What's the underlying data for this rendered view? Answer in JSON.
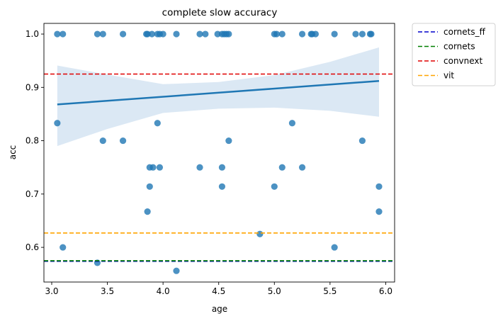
{
  "chart_data": {
    "type": "scatter",
    "title": "complete slow accuracy",
    "xlabel": "age",
    "ylabel": "acc",
    "xlim": [
      2.93,
      6.08
    ],
    "ylim": [
      0.535,
      1.02
    ],
    "xticks": [
      3.0,
      3.5,
      4.0,
      4.5,
      5.0,
      5.5,
      6.0
    ],
    "xtick_labels": [
      "3.0",
      "3.5",
      "4.0",
      "4.5",
      "5.0",
      "5.5",
      "6.0"
    ],
    "yticks": [
      0.6,
      0.7,
      0.8,
      0.9,
      1.0
    ],
    "ytick_labels": [
      "0.6",
      "0.7",
      "0.8",
      "0.9",
      "1.0"
    ],
    "grid": false,
    "legend_position": "outside-top-right",
    "point_color": "#1f77b4",
    "points": [
      {
        "x": 3.05,
        "y": 1.0
      },
      {
        "x": 3.1,
        "y": 1.0
      },
      {
        "x": 3.41,
        "y": 1.0
      },
      {
        "x": 3.46,
        "y": 1.0
      },
      {
        "x": 3.64,
        "y": 1.0
      },
      {
        "x": 3.85,
        "y": 1.0
      },
      {
        "x": 3.86,
        "y": 1.0
      },
      {
        "x": 3.9,
        "y": 1.0
      },
      {
        "x": 3.95,
        "y": 1.0
      },
      {
        "x": 3.97,
        "y": 1.0
      },
      {
        "x": 4.0,
        "y": 1.0
      },
      {
        "x": 4.12,
        "y": 1.0
      },
      {
        "x": 4.33,
        "y": 1.0
      },
      {
        "x": 4.38,
        "y": 1.0
      },
      {
        "x": 4.49,
        "y": 1.0
      },
      {
        "x": 4.53,
        "y": 1.0
      },
      {
        "x": 4.55,
        "y": 1.0
      },
      {
        "x": 4.57,
        "y": 1.0
      },
      {
        "x": 4.59,
        "y": 1.0
      },
      {
        "x": 5.0,
        "y": 1.0
      },
      {
        "x": 5.02,
        "y": 1.0
      },
      {
        "x": 5.07,
        "y": 1.0
      },
      {
        "x": 5.25,
        "y": 1.0
      },
      {
        "x": 5.33,
        "y": 1.0
      },
      {
        "x": 5.34,
        "y": 1.0
      },
      {
        "x": 5.37,
        "y": 1.0
      },
      {
        "x": 5.54,
        "y": 1.0
      },
      {
        "x": 5.73,
        "y": 1.0
      },
      {
        "x": 5.79,
        "y": 1.0
      },
      {
        "x": 5.86,
        "y": 1.0
      },
      {
        "x": 5.87,
        "y": 1.0
      },
      {
        "x": 3.05,
        "y": 0.833
      },
      {
        "x": 3.95,
        "y": 0.833
      },
      {
        "x": 5.16,
        "y": 0.833
      },
      {
        "x": 3.46,
        "y": 0.8
      },
      {
        "x": 3.64,
        "y": 0.8
      },
      {
        "x": 4.59,
        "y": 0.8
      },
      {
        "x": 5.79,
        "y": 0.8
      },
      {
        "x": 3.88,
        "y": 0.75
      },
      {
        "x": 3.91,
        "y": 0.75
      },
      {
        "x": 3.97,
        "y": 0.75
      },
      {
        "x": 4.33,
        "y": 0.75
      },
      {
        "x": 4.53,
        "y": 0.75
      },
      {
        "x": 5.07,
        "y": 0.75
      },
      {
        "x": 5.25,
        "y": 0.75
      },
      {
        "x": 3.88,
        "y": 0.714
      },
      {
        "x": 4.53,
        "y": 0.714
      },
      {
        "x": 5.0,
        "y": 0.714
      },
      {
        "x": 5.94,
        "y": 0.714
      },
      {
        "x": 3.86,
        "y": 0.667
      },
      {
        "x": 5.94,
        "y": 0.667
      },
      {
        "x": 4.87,
        "y": 0.625
      },
      {
        "x": 3.1,
        "y": 0.6
      },
      {
        "x": 5.54,
        "y": 0.6
      },
      {
        "x": 3.41,
        "y": 0.571
      },
      {
        "x": 4.12,
        "y": 0.556
      }
    ],
    "regression": {
      "x": [
        3.05,
        5.94
      ],
      "y": [
        0.868,
        0.912
      ],
      "color": "#1f77b4",
      "ci_band": {
        "x": [
          3.05,
          3.5,
          4.0,
          4.5,
          5.0,
          5.5,
          5.94
        ],
        "upper": [
          0.941,
          0.924,
          0.906,
          0.91,
          0.923,
          0.948,
          0.975
        ],
        "lower": [
          0.79,
          0.822,
          0.852,
          0.86,
          0.862,
          0.856,
          0.845
        ],
        "color": "#cfe0f0"
      }
    },
    "reference_lines": [
      {
        "name": "cornets_ff",
        "y": 0.574,
        "color": "#0000cc"
      },
      {
        "name": "cornets",
        "y": 0.575,
        "color": "#007f00"
      },
      {
        "name": "convnext",
        "y": 0.925,
        "color": "#e00000"
      },
      {
        "name": "vit",
        "y": 0.627,
        "color": "#ffa500"
      }
    ]
  }
}
